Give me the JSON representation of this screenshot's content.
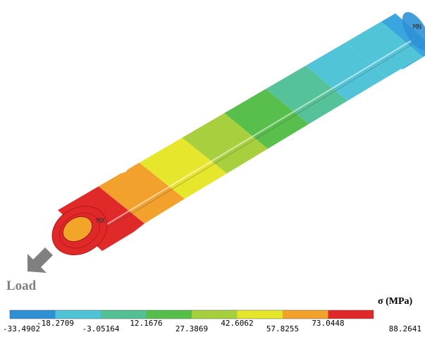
{
  "labels": {
    "max_marker": "MX",
    "min_marker": "MN",
    "load": "Load",
    "legend_title": "σ (MPa)"
  },
  "legend": {
    "bands": [
      "#2e8fd4",
      "#4ec4d6",
      "#52bf95",
      "#56bf4a",
      "#a6cf3c",
      "#e5e52a",
      "#f2a22a",
      "#e02828"
    ],
    "ticks_lower": [
      "-33.4902",
      "-3.05164",
      "27.3869",
      "57.8255",
      "88.2641"
    ],
    "ticks_upper": [
      "-18.2709",
      "12.1676",
      "42.6062",
      "73.0448"
    ]
  },
  "colors": {
    "load_arrow": "#808080"
  }
}
